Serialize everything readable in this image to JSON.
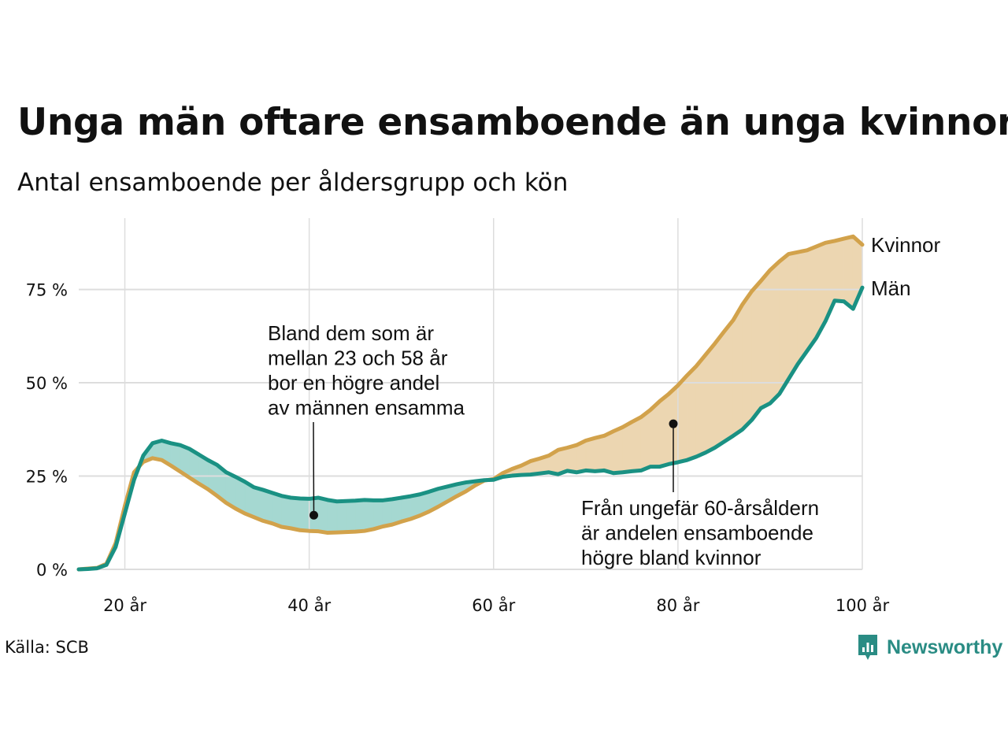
{
  "title": "Unga män oftare ensamboende än unga kvinnor",
  "subtitle": "Antal ensamboende per åldersgrupp och kön",
  "source": "Källa: SCB",
  "brand": {
    "name": "Newsworthy",
    "icon": "newsworthy-logo-icon",
    "color": "#2a8c84"
  },
  "colors": {
    "men": "#1a9183",
    "women": "#d2a24b",
    "men_area": "#a5d8d1",
    "women_area": "#ecd6b1",
    "grid": "#dddddd"
  },
  "chart_data": {
    "type": "line",
    "title": "Unga män oftare ensamboende än unga kvinnor",
    "subtitle": "Antal ensamboende per åldersgrupp och kön",
    "xlabel": "",
    "ylabel": "",
    "x": [
      15,
      16,
      17,
      18,
      19,
      20,
      21,
      22,
      23,
      24,
      25,
      26,
      27,
      28,
      29,
      30,
      31,
      32,
      33,
      34,
      35,
      36,
      37,
      38,
      39,
      40,
      41,
      42,
      43,
      44,
      45,
      46,
      47,
      48,
      49,
      50,
      51,
      52,
      53,
      54,
      55,
      56,
      57,
      58,
      59,
      60,
      61,
      62,
      63,
      64,
      65,
      66,
      67,
      68,
      69,
      70,
      71,
      72,
      73,
      74,
      75,
      76,
      77,
      78,
      79,
      80,
      81,
      82,
      83,
      84,
      85,
      86,
      87,
      88,
      89,
      90,
      91,
      92,
      93,
      94,
      95,
      96,
      97,
      98,
      99,
      100
    ],
    "series": [
      {
        "name": "Kvinnor",
        "values": [
          0,
          0.2,
          0.4,
          1.5,
          7,
          17,
          26,
          28.8,
          29.8,
          29.3,
          27.8,
          26.2,
          24.6,
          23,
          21.5,
          19.7,
          17.8,
          16.3,
          15,
          14,
          13,
          12.3,
          11.4,
          11,
          10.5,
          10.3,
          10.2,
          9.8,
          9.9,
          10,
          10.1,
          10.3,
          10.8,
          11.5,
          12,
          12.8,
          13.5,
          14.4,
          15.5,
          16.8,
          18.2,
          19.6,
          20.9,
          22.5,
          23.8,
          24.2,
          25.8,
          26.9,
          27.8,
          29,
          29.7,
          30.5,
          32,
          32.6,
          33.3,
          34.5,
          35.2,
          35.8,
          37,
          38.1,
          39.5,
          40.8,
          42.7,
          45,
          47,
          49.3,
          52,
          54.5,
          57.5,
          60.5,
          63.7,
          66.8,
          71,
          74.5,
          77.3,
          80.2,
          82.5,
          84.5,
          85,
          85.5,
          86.5,
          87.5,
          88,
          88.6,
          89.2,
          87
        ],
        "color": "#d2a24b"
      },
      {
        "name": "Män",
        "values": [
          0,
          0.1,
          0.3,
          1.2,
          6,
          15,
          24,
          30.5,
          33.8,
          34.5,
          33.8,
          33.3,
          32.3,
          30.8,
          29.3,
          28,
          26,
          24.8,
          23.5,
          22,
          21.3,
          20.5,
          19.7,
          19.2,
          19,
          18.9,
          19.2,
          18.6,
          18.2,
          18.3,
          18.4,
          18.6,
          18.5,
          18.5,
          18.8,
          19.2,
          19.6,
          20.1,
          20.8,
          21.6,
          22.2,
          22.8,
          23.3,
          23.6,
          23.9,
          24,
          24.8,
          25.1,
          25.3,
          25.4,
          25.7,
          26,
          25.5,
          26.4,
          26,
          26.5,
          26.3,
          26.5,
          25.8,
          26,
          26.3,
          26.5,
          27.5,
          27.5,
          28.2,
          28.7,
          29.3,
          30.2,
          31.3,
          32.6,
          34.2,
          35.8,
          37.5,
          40,
          43.2,
          44.5,
          47,
          51,
          55,
          58.5,
          62,
          66.5,
          72,
          71.8,
          69.8,
          75.5
        ],
        "color": "#1a9183"
      }
    ],
    "xlim": [
      15,
      100
    ],
    "ylim": [
      0,
      92
    ],
    "xticks": [
      20,
      40,
      60,
      80,
      100
    ],
    "xtick_labels": [
      "20 år",
      "40 år",
      "60 år",
      "80 år",
      "100 år"
    ],
    "yticks": [
      0,
      25,
      50,
      75
    ],
    "ytick_labels": [
      "0 %",
      "25 %",
      "50 %",
      "75 %"
    ],
    "grid": true,
    "legend": "direct labels at right end of lines",
    "annotations": [
      {
        "lines": [
          "Bland dem som är",
          "mellan 23 och 58 år",
          "bor en högre andel",
          "av männen ensamma"
        ],
        "point": {
          "x": 40.5,
          "y": 14.5
        }
      },
      {
        "lines": [
          "Från ungefär 60-årsåldern",
          "är andelen ensamboende",
          "högre bland kvinnor"
        ],
        "point": {
          "x": 79.5,
          "y": 39
        }
      }
    ]
  }
}
